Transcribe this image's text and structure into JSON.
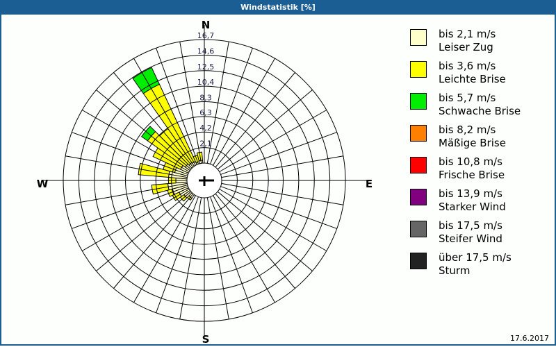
{
  "window": {
    "title": "Windstatistik [%]"
  },
  "footer": {
    "date": "17.6.2017"
  },
  "compass": {
    "n": "N",
    "e": "E",
    "s": "S",
    "w": "W"
  },
  "legend": [
    {
      "line1": "bis 2,1 m/s",
      "line2": "Leiser Zug",
      "color": "#ffffcc"
    },
    {
      "line1": "bis 3,6 m/s",
      "line2": "Leichte Brise",
      "color": "#ffff00"
    },
    {
      "line1": "bis 5,7 m/s",
      "line2": "Schwache Brise",
      "color": "#00ee00"
    },
    {
      "line1": "bis 8,2 m/s",
      "line2": "Mäßige Brise",
      "color": "#ff8000"
    },
    {
      "line1": "bis 10,8 m/s",
      "line2": "Frische Brise",
      "color": "#ff0000"
    },
    {
      "line1": "bis 13,9 m/s",
      "line2": "Starker Wind",
      "color": "#800080"
    },
    {
      "line1": "bis 17,5 m/s",
      "line2": "Steifer Wind",
      "color": "#666666"
    },
    {
      "line1": "über 17,5 m/s",
      "line2": "Sturm",
      "color": "#222222"
    }
  ],
  "chart_data": {
    "type": "polar-stacked-bar",
    "title": "Windstatistik [%]",
    "radial_ticks": [
      "2,1",
      "4,2",
      "6,3",
      "8,3",
      "10,4",
      "12,5",
      "14,6",
      "16,7"
    ],
    "radial_max": 16.7,
    "sector_width_deg": 10,
    "series_names": [
      "bis 2,1 m/s",
      "bis 3,6 m/s",
      "bis 5,7 m/s",
      "bis 8,2 m/s",
      "bis 10,8 m/s",
      "bis 13,9 m/s",
      "bis 17,5 m/s",
      "über 17,5 m/s"
    ],
    "sectors": [
      {
        "dir": 220,
        "cum": [
          0.6,
          0.9
        ]
      },
      {
        "dir": 230,
        "cum": [
          1.0,
          1.6
        ]
      },
      {
        "dir": 240,
        "cum": [
          1.4,
          2.4
        ]
      },
      {
        "dir": 250,
        "cum": [
          2.2,
          2.8
        ]
      },
      {
        "dir": 260,
        "cum": [
          2.6,
          4.8
        ]
      },
      {
        "dir": 270,
        "cum": [
          1.5,
          2.5
        ]
      },
      {
        "dir": 280,
        "cum": [
          2.5,
          6.6
        ]
      },
      {
        "dir": 290,
        "cum": [
          1.8,
          3.4
        ]
      },
      {
        "dir": 300,
        "cum": [
          1.2,
          5.3
        ]
      },
      {
        "dir": 310,
        "cum": [
          0.8,
          7.0,
          8.0
        ]
      },
      {
        "dir": 320,
        "cum": [
          0.6,
          6.2
        ]
      },
      {
        "dir": 330,
        "cum": [
          0.5,
          12.0,
          14.5
        ]
      },
      {
        "dir": 340,
        "cum": [
          0.3,
          1.2
        ]
      },
      {
        "dir": 350,
        "cum": [
          0.4,
          1.5
        ]
      }
    ]
  }
}
